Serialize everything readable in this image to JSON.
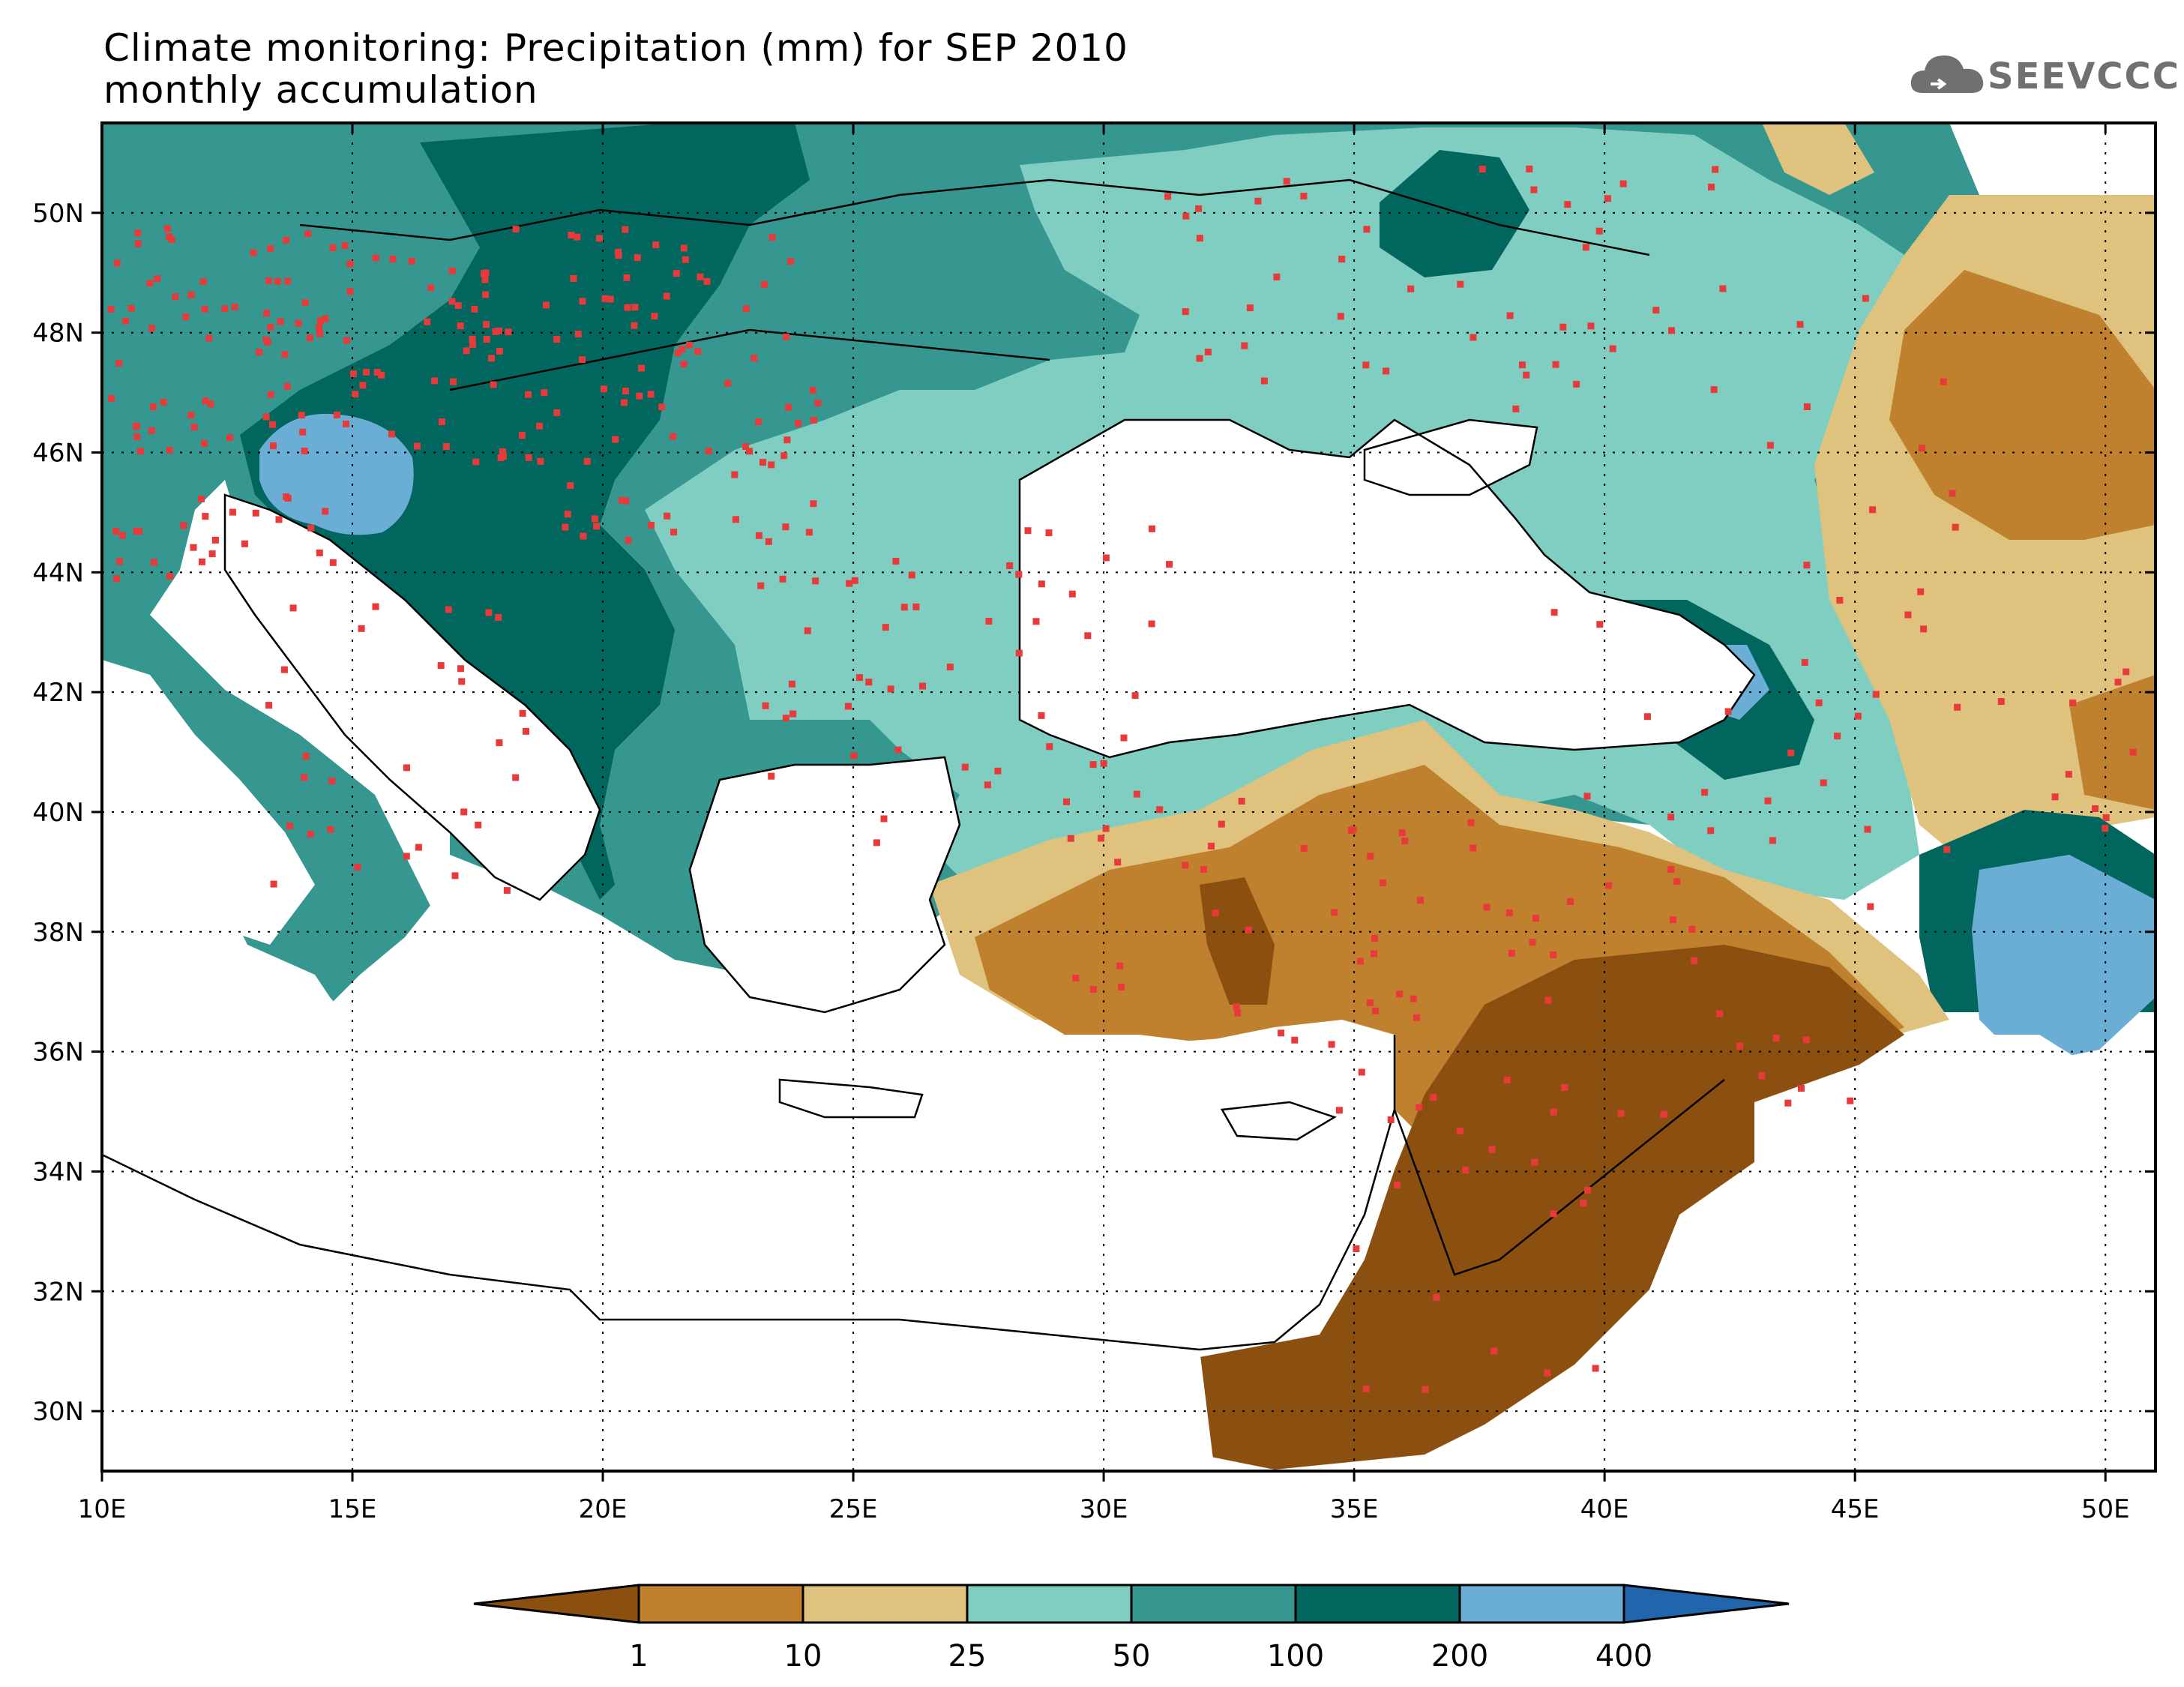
{
  "title_line1": "Climate monitoring: Precipitation (mm) for SEP 2010",
  "title_line2": "monthly accumulation",
  "logo_text": "SEEVCCC",
  "logo_icon": "cloud-icon",
  "map": {
    "lon_range": [
      10,
      51
    ],
    "lat_range": [
      29,
      51.5
    ],
    "x_ticks": [
      "10E",
      "15E",
      "20E",
      "25E",
      "30E",
      "35E",
      "40E",
      "45E",
      "50E"
    ],
    "y_ticks": [
      "30N",
      "32N",
      "34N",
      "36N",
      "38N",
      "40N",
      "42N",
      "44N",
      "46N",
      "48N",
      "50N"
    ],
    "grid": "dotted",
    "station_marker_color": "#e83a3a"
  },
  "colorbar": {
    "labels": [
      "1",
      "10",
      "25",
      "50",
      "100",
      "200",
      "400"
    ],
    "colors": [
      "#8b5010",
      "#bf812d",
      "#dfc27d",
      "#80cdc1",
      "#35978f",
      "#01665e",
      "#6aaed6",
      "#2166ac"
    ],
    "triangle_colors": {
      "low": "#8b5010",
      "high": "#2166ac"
    }
  }
}
